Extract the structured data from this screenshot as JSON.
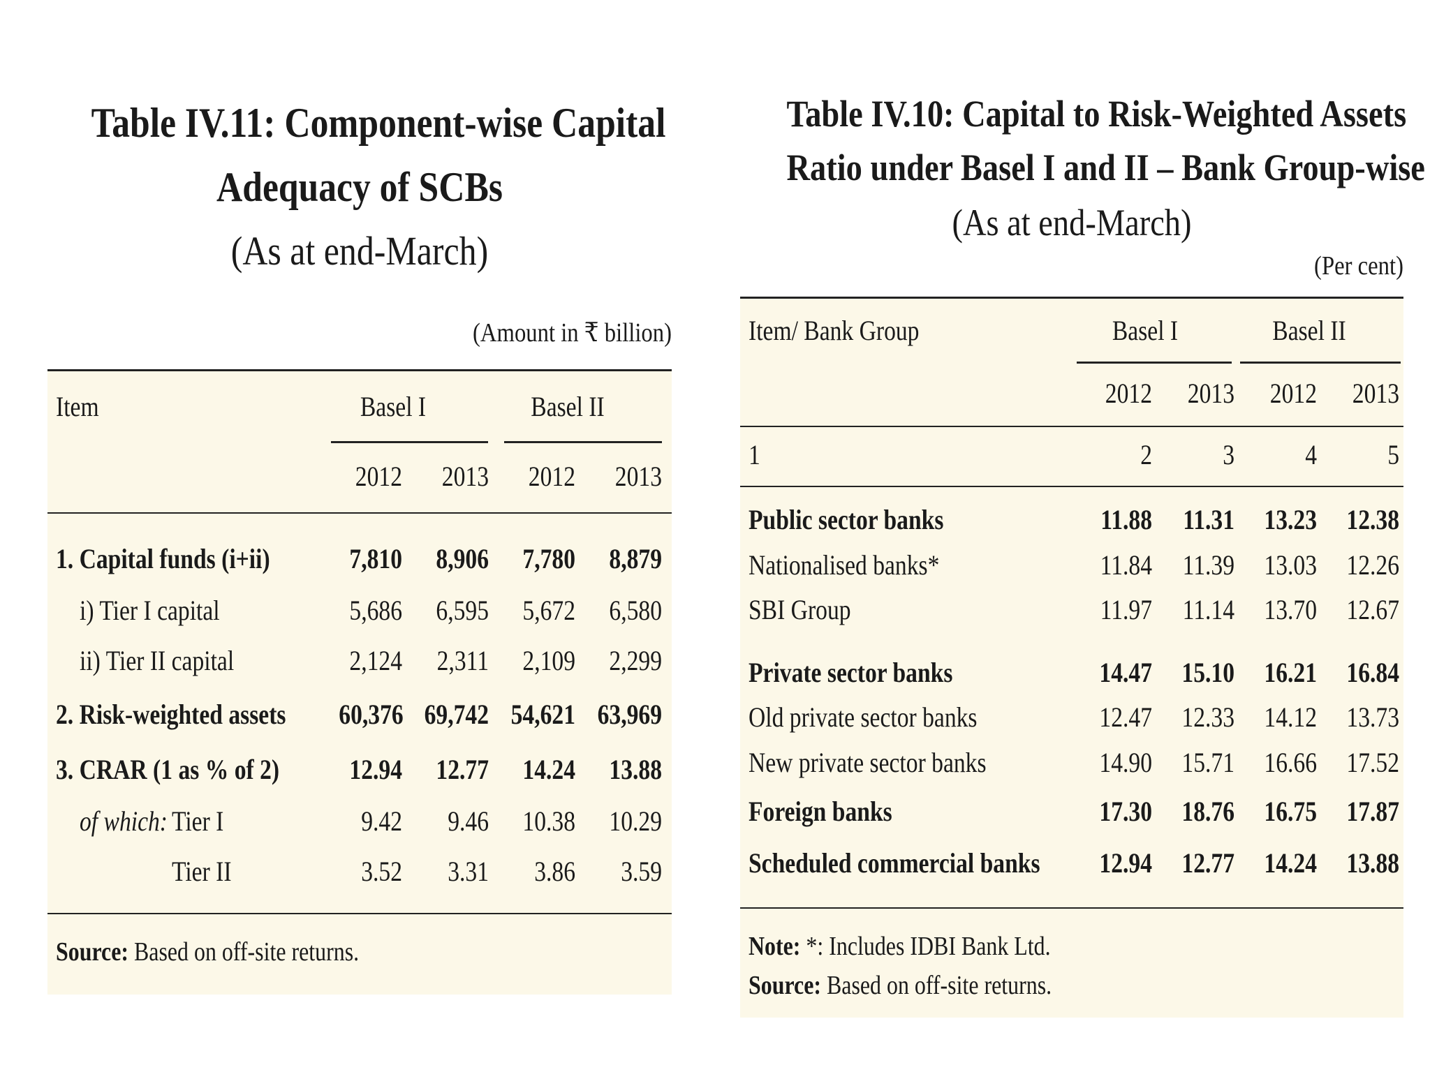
{
  "left_table": {
    "title_line1": "Table IV.11: Component-wise Capital",
    "title_line2": "Adequacy of SCBs",
    "subtitle": "(As at end-March)",
    "unit": "(Amount in ₹ billion)",
    "header": {
      "item": "Item",
      "group1": "Basel I",
      "group2": "Basel II",
      "years": [
        "2012",
        "2013",
        "2012",
        "2013"
      ]
    },
    "rows": [
      {
        "label": "1. Capital funds (i+ii)",
        "values": [
          "7,810",
          "8,906",
          "7,780",
          "8,879"
        ],
        "bold": true
      },
      {
        "label": "i)  Tier I capital",
        "values": [
          "5,686",
          "6,595",
          "5,672",
          "6,580"
        ],
        "bold": false
      },
      {
        "label": "ii) Tier II capital",
        "values": [
          "2,124",
          "2,311",
          "2,109",
          "2,299"
        ],
        "bold": false
      },
      {
        "label": "2. Risk-weighted assets",
        "values": [
          "60,376",
          "69,742",
          "54,621",
          "63,969"
        ],
        "bold": true
      },
      {
        "label": "3. CRAR (1 as % of 2)",
        "values": [
          "12.94",
          "12.77",
          "14.24",
          "13.88"
        ],
        "bold": true
      },
      {
        "label_italic": "of which:",
        "label": "Tier I",
        "values": [
          "9.42",
          "9.46",
          "10.38",
          "10.29"
        ],
        "bold": false
      },
      {
        "label": "Tier II",
        "values": [
          "3.52",
          "3.31",
          "3.86",
          "3.59"
        ],
        "bold": false
      }
    ],
    "source_label": "Source:",
    "source_text": "Based on off-site returns."
  },
  "right_table": {
    "title_line1": "Table IV.10: Capital to Risk-Weighted Assets",
    "title_line2": "Ratio under Basel I and II – Bank Group-wise",
    "subtitle": "(As at end-March)",
    "unit": "(Per cent)",
    "header": {
      "item": "Item/ Bank Group",
      "group1": "Basel I",
      "group2": "Basel II",
      "years": [
        "2012",
        "2013",
        "2012",
        "2013"
      ],
      "col_numbers": [
        "1",
        "2",
        "3",
        "4",
        "5"
      ]
    },
    "rows": [
      {
        "label": "Public sector banks",
        "values": [
          "11.88",
          "11.31",
          "13.23",
          "12.38"
        ],
        "bold": true
      },
      {
        "label": "Nationalised banks*",
        "values": [
          "11.84",
          "11.39",
          "13.03",
          "12.26"
        ],
        "bold": false
      },
      {
        "label": "SBI Group",
        "values": [
          "11.97",
          "11.14",
          "13.70",
          "12.67"
        ],
        "bold": false
      },
      {
        "label": "Private sector banks",
        "values": [
          "14.47",
          "15.10",
          "16.21",
          "16.84"
        ],
        "bold": true
      },
      {
        "label": "Old private sector banks",
        "values": [
          "12.47",
          "12.33",
          "14.12",
          "13.73"
        ],
        "bold": false
      },
      {
        "label": "New private sector banks",
        "values": [
          "14.90",
          "15.71",
          "16.66",
          "17.52"
        ],
        "bold": false
      },
      {
        "label": "Foreign banks",
        "values": [
          "17.30",
          "18.76",
          "16.75",
          "17.87"
        ],
        "bold": true
      },
      {
        "label": "Scheduled commercial banks",
        "values": [
          "12.94",
          "12.77",
          "14.24",
          "13.88"
        ],
        "bold": true
      }
    ],
    "note_label": "Note:",
    "note_text": "*: Includes IDBI Bank Ltd.",
    "source_label": "Source:",
    "source_text": "Based on off-site returns."
  }
}
